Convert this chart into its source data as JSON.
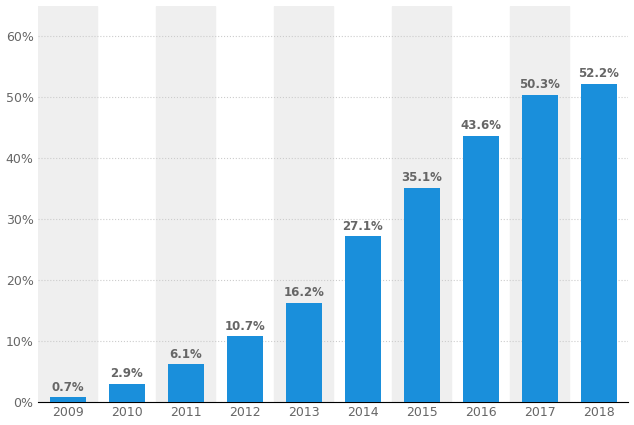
{
  "years": [
    "2009",
    "2010",
    "2011",
    "2012",
    "2013",
    "2014",
    "2015",
    "2016",
    "2017",
    "2018"
  ],
  "values": [
    0.7,
    2.9,
    6.1,
    10.7,
    16.2,
    27.1,
    35.1,
    43.6,
    50.3,
    52.2
  ],
  "bar_color": "#1a8fdb",
  "background_color": "#ffffff",
  "plot_background_color": "#ffffff",
  "stripe_color": "#efefef",
  "grid_color": "#cccccc",
  "label_color": "#666666",
  "axis_color": "#000000",
  "yticks": [
    0,
    10,
    20,
    30,
    40,
    50,
    60
  ],
  "ylim": [
    0,
    65
  ],
  "bar_width": 0.62,
  "label_fontsize": 8.5,
  "tick_fontsize": 9.0,
  "value_fontweight": "bold"
}
